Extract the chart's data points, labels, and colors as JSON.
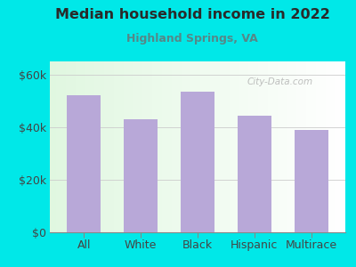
{
  "title": "Median household income in 2022",
  "subtitle": "Highland Springs, VA",
  "categories": [
    "All",
    "White",
    "Black",
    "Hispanic",
    "Multirace"
  ],
  "values": [
    52000,
    43000,
    53500,
    44500,
    39000
  ],
  "bar_color": "#b8a8d8",
  "background_color": "#00e8e8",
  "title_color": "#2a2a2a",
  "subtitle_color": "#558888",
  "tick_color": "#444444",
  "ylim": [
    0,
    65000
  ],
  "yticks": [
    0,
    20000,
    40000,
    60000
  ],
  "ytick_labels": [
    "$0",
    "$20k",
    "$40k",
    "$60k"
  ],
  "watermark": "City-Data.com",
  "grid_color": "#cccccc"
}
